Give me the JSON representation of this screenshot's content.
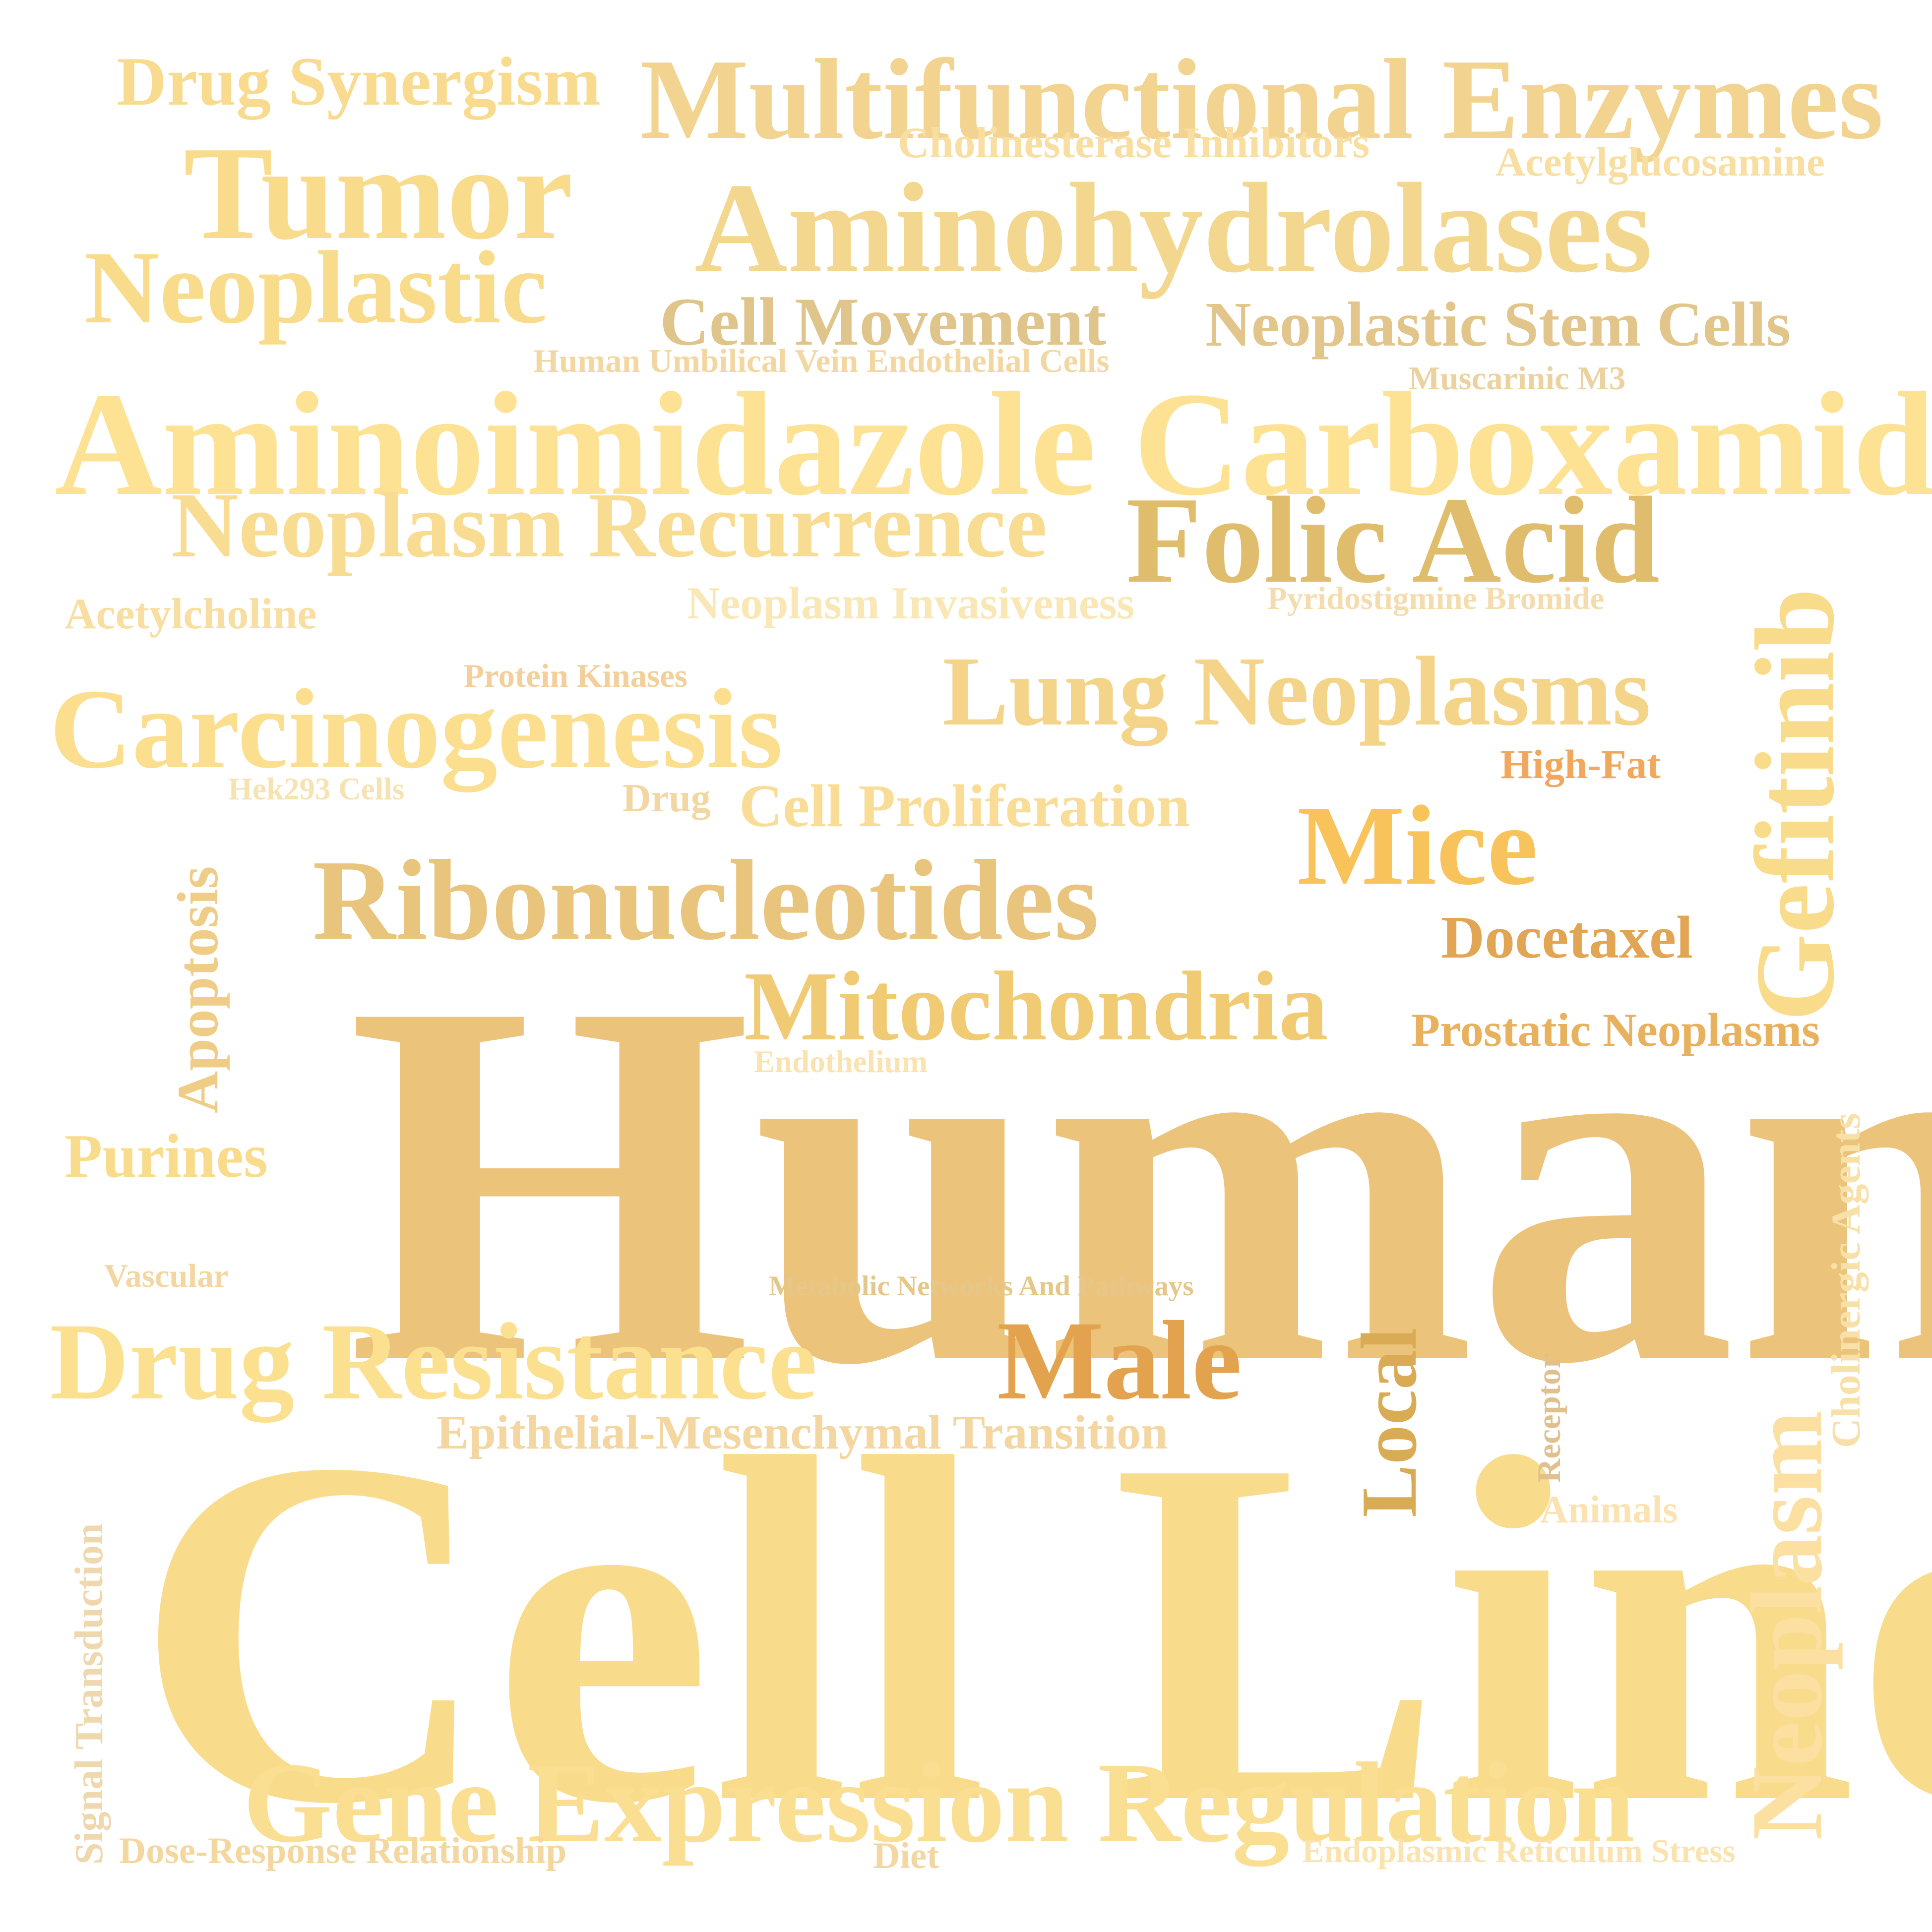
{
  "words": [
    {
      "text": "Humans",
      "color": "#ebc37a"
    },
    {
      "text": "Cell Line",
      "color": "#f9dc8b"
    },
    {
      "text": "Aminoimidazole Carboxamide",
      "color": "#fde293"
    },
    {
      "text": "Multifunctional Enzymes",
      "color": "#f2d490"
    },
    {
      "text": "Aminohydrolases",
      "color": "#f4d78e"
    },
    {
      "text": "Tumor",
      "color": "#f9dc8b"
    },
    {
      "text": "Neoplastic",
      "color": "#f9dc8b"
    },
    {
      "text": "Drug Synergism",
      "color": "#f8db8e"
    },
    {
      "text": "Cholinesterase Inhibitors",
      "color": "#f8dea1"
    },
    {
      "text": "Acetylglucosamine",
      "color": "#f8dea1"
    },
    {
      "text": "Cell Movement",
      "color": "#dfc48b"
    },
    {
      "text": "Neoplastic Stem Cells",
      "color": "#e2c58b"
    },
    {
      "text": "Human Umbilical Vein Endothelial Cells",
      "color": "#f3d7a2"
    },
    {
      "text": "Muscarinic M3",
      "color": "#ecd2a0"
    },
    {
      "text": "Neoplasm Recurrence",
      "color": "#f8dc92"
    },
    {
      "text": "Folic Acid",
      "color": "#e0bd6d"
    },
    {
      "text": "Acetylcholine",
      "color": "#f8dea1"
    },
    {
      "text": "Neoplasm Invasiveness",
      "color": "#fae7b6"
    },
    {
      "text": "Pyridostigmine Bromide",
      "color": "#f5dcae"
    },
    {
      "text": "Gefitinib",
      "color": "#f9dc8b"
    },
    {
      "text": "Protein Kinases",
      "color": "#f2cf9b"
    },
    {
      "text": "Carcinogenesis",
      "color": "#fbdf8f"
    },
    {
      "text": "Lung Neoplasms",
      "color": "#f4d488"
    },
    {
      "text": "Hek293 Cells",
      "color": "#f7e2b1"
    },
    {
      "text": "Drug",
      "color": "#f3d7a2"
    },
    {
      "text": "Cell Proliferation",
      "color": "#f9dd96"
    },
    {
      "text": "High-Fat",
      "color": "#f1a85c"
    },
    {
      "text": "Mice",
      "color": "#f7c35a"
    },
    {
      "text": "Apoptosis",
      "color": "#efcd86"
    },
    {
      "text": "Ribonucleotides",
      "color": "#e9c47d"
    },
    {
      "text": "Docetaxel",
      "color": "#e1a553"
    },
    {
      "text": "Mitochondria",
      "color": "#f1cb74"
    },
    {
      "text": "Prostatic Neoplasms",
      "color": "#e7b15d"
    },
    {
      "text": "Endothelium",
      "color": "#fae3af"
    },
    {
      "text": "Purines",
      "color": "#f9dc8b"
    },
    {
      "text": "Cholinergic Agents",
      "color": "#f8e1a9"
    },
    {
      "text": "Vascular",
      "color": "#f3d7a2"
    },
    {
      "text": "Metabolic Networks And Pathways",
      "color": "#e6c78a"
    },
    {
      "text": "Drug Resistance",
      "color": "#fbe090"
    },
    {
      "text": "Male",
      "color": "#e3a34e"
    },
    {
      "text": "Local",
      "color": "#d9ab55"
    },
    {
      "text": "Receptor",
      "color": "#e0c08f"
    },
    {
      "text": "Neoplasm",
      "color": "#fbe0a2"
    },
    {
      "text": "Epithelial-Mesenchymal Transition",
      "color": "#f3d6a0"
    },
    {
      "text": "Animals",
      "color": "#fbe2b1"
    },
    {
      "text": "Signal Transduction",
      "color": "#efd7ae"
    },
    {
      "text": "Gene Expression Regulation",
      "color": "#fadf93"
    },
    {
      "text": "Dose-Response Relationship",
      "color": "#f3d79f"
    },
    {
      "text": "Diet",
      "color": "#f3d7a2"
    },
    {
      "text": "Endoplasmic Reticulum Stress",
      "color": "#fae3af"
    }
  ]
}
